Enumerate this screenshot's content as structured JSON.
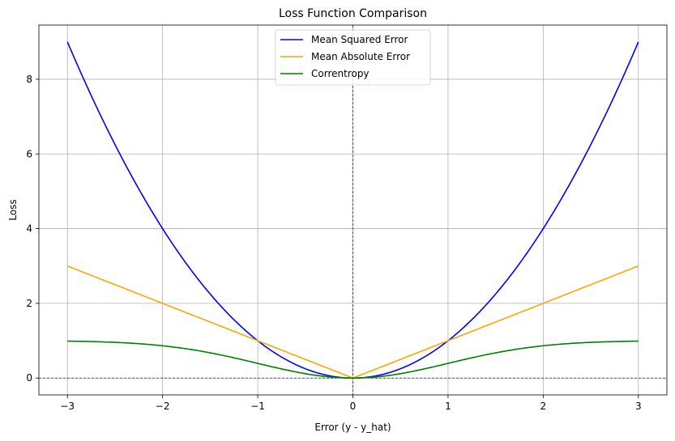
{
  "chart_data": {
    "type": "line",
    "title": "Loss Function Comparison",
    "xlabel": "Error (y - y_hat)",
    "ylabel": "Loss",
    "xlim": [
      -3.3,
      3.3
    ],
    "ylim": [
      -0.45,
      9.45
    ],
    "xticks": [
      -3,
      -2,
      -1,
      0,
      1,
      2,
      3
    ],
    "yticks": [
      0,
      2,
      4,
      6,
      8
    ],
    "xtick_labels": [
      "−3",
      "−2",
      "−1",
      "0",
      "1",
      "2",
      "3"
    ],
    "ytick_labels": [
      "0",
      "2",
      "4",
      "6",
      "8"
    ],
    "grid": true,
    "legend_position": "top-center",
    "reference_lines": {
      "x": 0,
      "y": 0,
      "style": "dashed",
      "color": "#000000"
    },
    "x": [
      -3,
      -2.5,
      -2,
      -1.5,
      -1,
      -0.5,
      0,
      0.5,
      1,
      1.5,
      2,
      2.5,
      3
    ],
    "series": [
      {
        "name": "Mean Squared Error",
        "color": "#0000ff",
        "values": [
          9,
          6.25,
          4,
          2.25,
          1,
          0.25,
          0,
          0.25,
          1,
          2.25,
          4,
          6.25,
          9
        ]
      },
      {
        "name": "Mean Absolute Error",
        "color": "#ffa500",
        "values": [
          3,
          2.5,
          2,
          1.5,
          1,
          0.5,
          0,
          0.5,
          1,
          1.5,
          2,
          2.5,
          3
        ]
      },
      {
        "name": "Correntropy",
        "color": "#008000",
        "values": [
          0.99,
          0.96,
          0.86,
          0.68,
          0.39,
          0.12,
          0,
          0.12,
          0.39,
          0.68,
          0.86,
          0.96,
          0.99
        ]
      }
    ]
  }
}
